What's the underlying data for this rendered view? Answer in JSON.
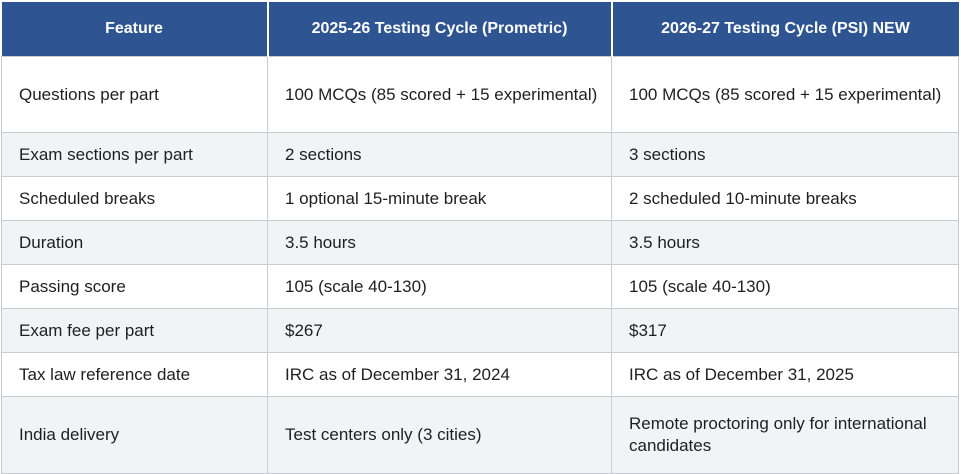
{
  "table": {
    "headers": [
      "Feature",
      "2025-26 Testing Cycle (Prometric)",
      "2026-27 Testing Cycle (PSI)  NEW"
    ],
    "rows": [
      [
        "Questions per part",
        "100 MCQs (85 scored + 15 experimental)",
        "100 MCQs (85 scored + 15 experimental)"
      ],
      [
        "Exam sections per part",
        "2 sections",
        "3 sections"
      ],
      [
        "Scheduled breaks",
        "1 optional 15-minute break",
        "2 scheduled 10-minute breaks"
      ],
      [
        "Duration",
        "3.5 hours",
        "3.5 hours"
      ],
      [
        "Passing score",
        "105 (scale 40-130)",
        "105 (scale 40-130)"
      ],
      [
        "Exam fee per part",
        "$267",
        "$317"
      ],
      [
        "Tax law reference date",
        "IRC as of December 31, 2024",
        "IRC as of December 31, 2025"
      ],
      [
        "India delivery",
        "Test centers only (3 cities)",
        "Remote proctoring only for international candidates"
      ]
    ]
  },
  "colors": {
    "header_bg": "#2e5591",
    "header_text": "#ffffff",
    "row_alt_bg": "#f2f3f5",
    "border": "#c8ccd2"
  }
}
